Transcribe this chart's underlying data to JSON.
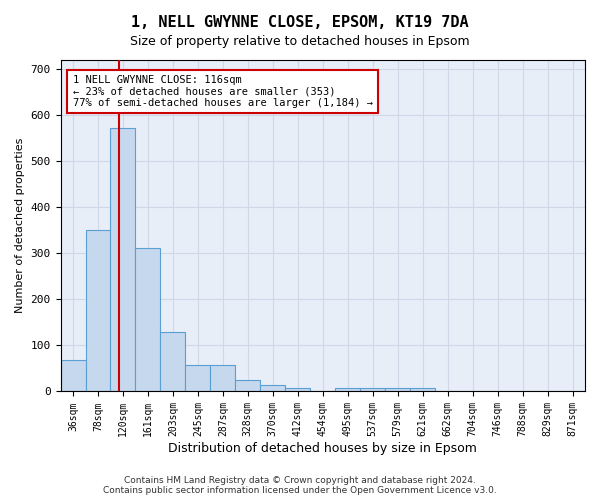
{
  "title_line1": "1, NELL GWYNNE CLOSE, EPSOM, KT19 7DA",
  "title_line2": "Size of property relative to detached houses in Epsom",
  "xlabel": "Distribution of detached houses by size in Epsom",
  "ylabel": "Number of detached properties",
  "bins": [
    "36sqm",
    "78sqm",
    "120sqm",
    "161sqm",
    "203sqm",
    "245sqm",
    "287sqm",
    "328sqm",
    "370sqm",
    "412sqm",
    "454sqm",
    "495sqm",
    "537sqm",
    "579sqm",
    "621sqm",
    "662sqm",
    "704sqm",
    "746sqm",
    "788sqm",
    "829sqm",
    "871sqm"
  ],
  "values": [
    68,
    351,
    573,
    312,
    130,
    58,
    58,
    26,
    13,
    8,
    0,
    8,
    8,
    8,
    8,
    0,
    0,
    0,
    0,
    0,
    0
  ],
  "bar_color": "#c5d8ed",
  "bar_edge_color": "#5a9fd4",
  "property_line_x": 2.33,
  "property_line_color": "#cc0000",
  "annotation_text": "1 NELL GWYNNE CLOSE: 116sqm\n← 23% of detached houses are smaller (353)\n77% of semi-detached houses are larger (1,184) →",
  "annotation_box_color": "#ffffff",
  "annotation_box_edge_color": "#cc0000",
  "ylim": [
    0,
    720
  ],
  "yticks": [
    0,
    100,
    200,
    300,
    400,
    500,
    600,
    700
  ],
  "grid_color": "#d0d8e8",
  "background_color": "#e8eef8",
  "footer_line1": "Contains HM Land Registry data © Crown copyright and database right 2024.",
  "footer_line2": "Contains public sector information licensed under the Open Government Licence v3.0."
}
